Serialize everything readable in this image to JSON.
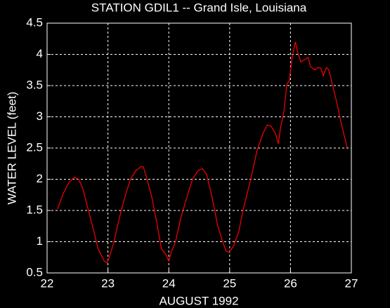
{
  "chart_data": {
    "type": "line",
    "title": "STATION GDIL1  -- Grand Isle, Louisiana",
    "xlabel": "AUGUST 1992",
    "ylabel": "WATER LEVEL (feet)",
    "xlim": [
      22,
      27
    ],
    "xticks": [
      22,
      23,
      24,
      25,
      26,
      27
    ],
    "ylim": [
      0.5,
      4.5
    ],
    "yticks": [
      0.5,
      1,
      1.5,
      2,
      2.5,
      3,
      3.5,
      4,
      4.5
    ],
    "grid": true,
    "series": [
      {
        "color": "#ff0000",
        "x": [
          22.17,
          22.27,
          22.36,
          22.45,
          22.52,
          22.59,
          22.68,
          22.77,
          22.84,
          22.94,
          22.98,
          23.02,
          23.1,
          23.19,
          23.28,
          23.37,
          23.46,
          23.54,
          23.58,
          23.62,
          23.72,
          23.81,
          23.88,
          23.95,
          24.0,
          24.04,
          24.11,
          24.2,
          24.3,
          24.39,
          24.48,
          24.55,
          24.62,
          24.71,
          24.8,
          24.87,
          24.94,
          24.99,
          25.06,
          25.15,
          25.22,
          25.29,
          25.36,
          25.45,
          25.55,
          25.62,
          25.68,
          25.75,
          25.8,
          25.84,
          25.89,
          25.94,
          25.98,
          26.03,
          26.08,
          26.12,
          26.17,
          26.24,
          26.29,
          26.33,
          26.4,
          26.45,
          26.5,
          26.54,
          26.59,
          26.63,
          26.7,
          26.77,
          26.84,
          26.93
        ],
        "values": [
          1.52,
          1.78,
          1.95,
          2.03,
          2.0,
          1.84,
          1.5,
          1.16,
          0.88,
          0.69,
          0.66,
          0.74,
          1.0,
          1.39,
          1.72,
          2.0,
          2.14,
          2.2,
          2.2,
          2.08,
          1.72,
          1.27,
          0.88,
          0.8,
          0.69,
          0.83,
          1.0,
          1.39,
          1.72,
          2.0,
          2.14,
          2.17,
          2.08,
          1.72,
          1.27,
          1.05,
          0.85,
          0.83,
          0.92,
          1.16,
          1.5,
          1.78,
          2.06,
          2.46,
          2.74,
          2.87,
          2.85,
          2.74,
          2.57,
          2.85,
          3.07,
          3.52,
          3.58,
          3.97,
          4.2,
          4.03,
          3.88,
          3.92,
          3.95,
          3.8,
          3.75,
          3.79,
          3.78,
          3.66,
          3.79,
          3.75,
          3.47,
          3.19,
          2.87,
          2.51
        ]
      }
    ]
  }
}
